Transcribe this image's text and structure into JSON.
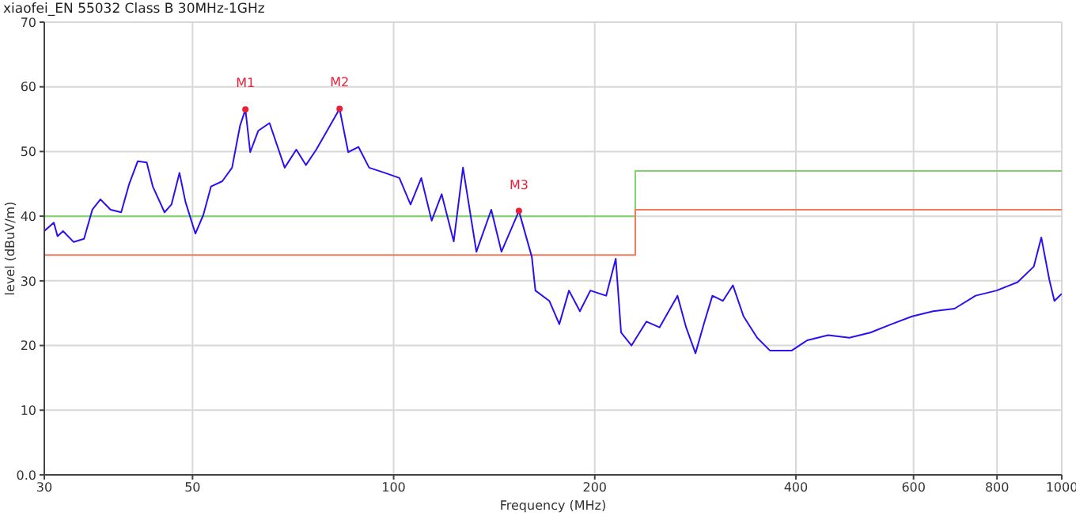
{
  "chart_data": {
    "type": "line",
    "title": "xiaofei_EN 55032 Class B 30MHz-1GHz",
    "xlabel": "Frequency (MHz)",
    "ylabel": "level (dBuV/m)",
    "log": "x",
    "grid": true,
    "legend": false,
    "marker": "none",
    "xlim": [
      30,
      1000
    ],
    "xticks": [
      30,
      50,
      100,
      200,
      400,
      600,
      800,
      1000
    ],
    "ylim": [
      0,
      70
    ],
    "yticks": [
      {
        "value": 0,
        "label": "0.0"
      },
      10,
      20,
      30,
      40,
      50,
      60,
      70
    ],
    "series": [
      {
        "type": "step",
        "color": "#7ed36a",
        "x": [
          30,
          230,
          1000
        ],
        "values": [
          40,
          47,
          47
        ]
      },
      {
        "type": "step",
        "color": "#f07a5a",
        "x": [
          30,
          230,
          1000
        ],
        "values": [
          34,
          41,
          41
        ]
      },
      {
        "type": "line",
        "color": "#2b10f0",
        "x": [
          30,
          31,
          31.4,
          32,
          33.2,
          34.4,
          35.4,
          36.4,
          37.7,
          39.1,
          40.2,
          41.4,
          42.7,
          43.6,
          45.4,
          46.5,
          47.8,
          48.8,
          50.5,
          51.9,
          53.3,
          55.4,
          57.3,
          58.9,
          60,
          61,
          62.7,
          65.2,
          68.7,
          71.5,
          73.9,
          76.6,
          79.5,
          83,
          85.5,
          88.6,
          91.9,
          97,
          102,
          106,
          110,
          114,
          118,
          123,
          127,
          133,
          140,
          145,
          154,
          161,
          163,
          171,
          177,
          183,
          190,
          197,
          208,
          215,
          219,
          227,
          239,
          250,
          266,
          274,
          283,
          292,
          300,
          311,
          322,
          334,
          350,
          366,
          394,
          416,
          447,
          481,
          517,
          556,
          597,
          642,
          691,
          743,
          799,
          859,
          908,
          932,
          958,
          975,
          1000
        ],
        "values": [
          37.7,
          39,
          36.9,
          37.7,
          36,
          36.5,
          41,
          42.6,
          41,
          40.6,
          45,
          48.5,
          48.3,
          44.6,
          40.6,
          41.8,
          46.7,
          42.2,
          37.3,
          40.2,
          44.6,
          45.4,
          47.5,
          54,
          56.5,
          49.9,
          53.2,
          54.4,
          47.5,
          50.3,
          47.9,
          50.3,
          53.2,
          56.6,
          49.9,
          50.7,
          47.5,
          46.7,
          45.9,
          41.8,
          45.9,
          39.3,
          43.4,
          36.1,
          47.5,
          34.5,
          41,
          34.5,
          40.8,
          33.7,
          28.5,
          26.9,
          23.3,
          28.5,
          25.3,
          28.5,
          27.7,
          33.4,
          22,
          20,
          23.7,
          22.8,
          27.7,
          22.8,
          18.8,
          23.7,
          27.7,
          26.9,
          29.3,
          24.5,
          21.2,
          19.2,
          19.2,
          20.8,
          21.6,
          21.2,
          22,
          23.3,
          24.5,
          25.3,
          25.7,
          27.7,
          28.5,
          29.8,
          32.2,
          36.7,
          30.2,
          26.9,
          28
        ]
      }
    ],
    "annotations": [
      {
        "text": "M1",
        "x": 60,
        "y": 56.5
      },
      {
        "text": "M2",
        "x": 83,
        "y": 56.6
      },
      {
        "text": "M3",
        "x": 154,
        "y": 40.8
      }
    ]
  }
}
